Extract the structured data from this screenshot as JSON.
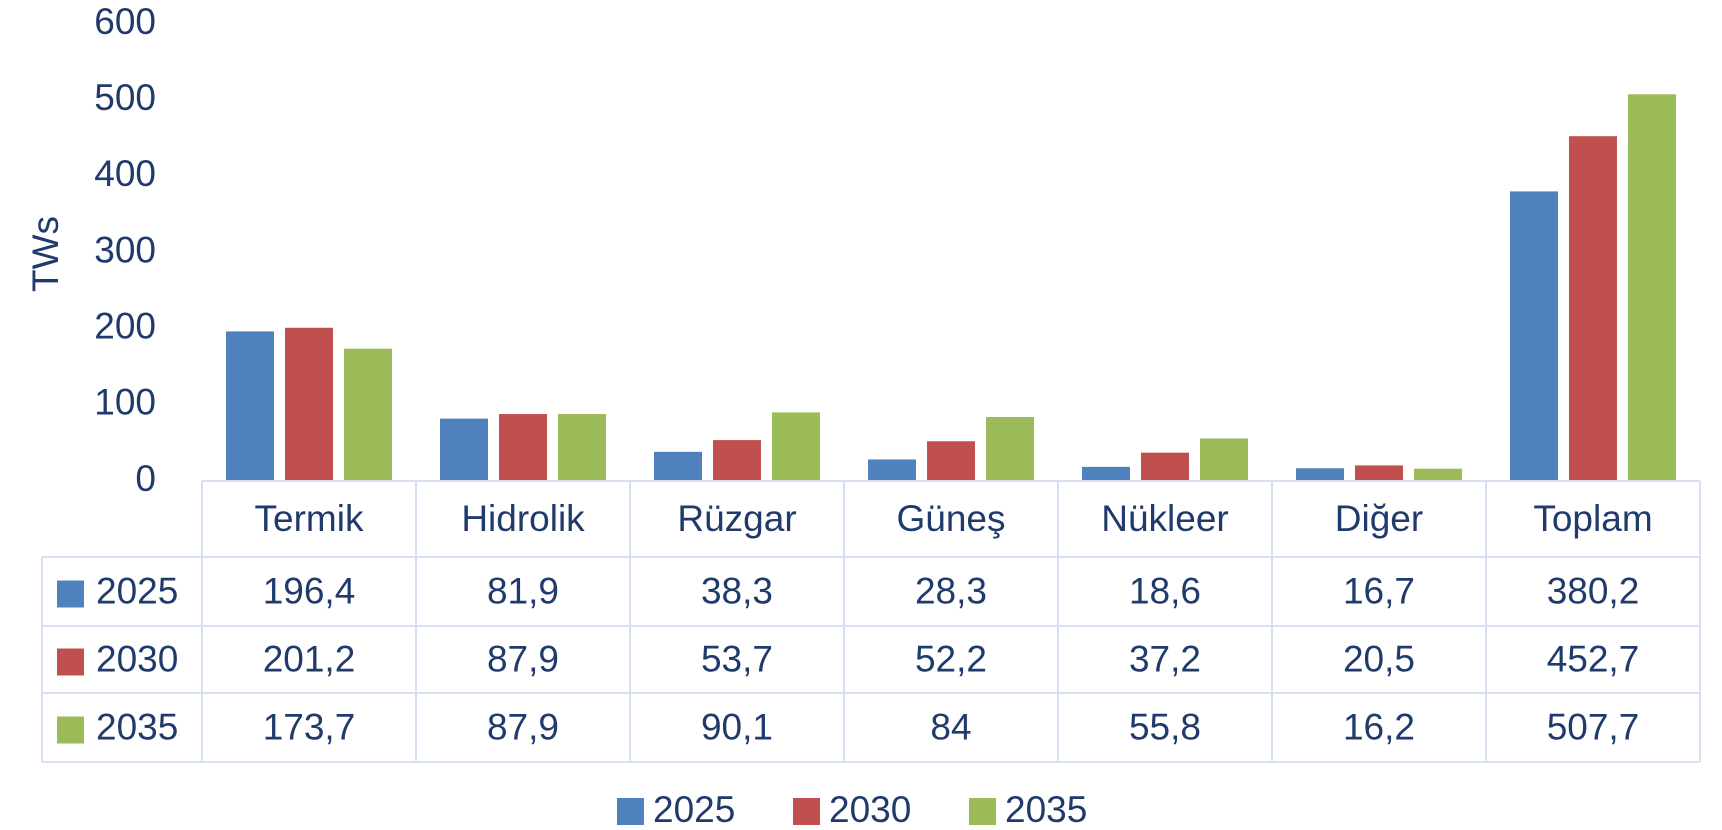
{
  "chart_data": {
    "type": "bar",
    "y_label": "TWs",
    "categories": [
      "Termik",
      "Hidrolik",
      "Rüzgar",
      "Güneş",
      "Nükleer",
      "Diğer",
      "Toplam"
    ],
    "series": [
      {
        "name": "2025",
        "color": "#4f81bd",
        "values": [
          196.4,
          81.9,
          38.3,
          28.3,
          18.6,
          16.7,
          380.2
        ],
        "value_labels": [
          "196,4",
          "81,9",
          "38,3",
          "28,3",
          "18,6",
          "16,7",
          "380,2"
        ]
      },
      {
        "name": "2030",
        "color": "#c0504d",
        "values": [
          201.2,
          87.9,
          53.7,
          52.2,
          37.2,
          20.5,
          452.7
        ],
        "value_labels": [
          "201,2",
          "87,9",
          "53,7",
          "52,2",
          "37,2",
          "20,5",
          "452,7"
        ]
      },
      {
        "name": "2035",
        "color": "#9bbb59",
        "values": [
          173.7,
          87.9,
          90.1,
          84,
          55.8,
          16.2,
          507.7
        ],
        "value_labels": [
          "173,7",
          "87,9",
          "90,1",
          "84",
          "55,8",
          "16,2",
          "507,7"
        ]
      }
    ],
    "ylim": [
      0,
      600
    ],
    "yticks": [
      0,
      100,
      200,
      300,
      400,
      500,
      600
    ],
    "grid": false,
    "legend": "bottom"
  }
}
